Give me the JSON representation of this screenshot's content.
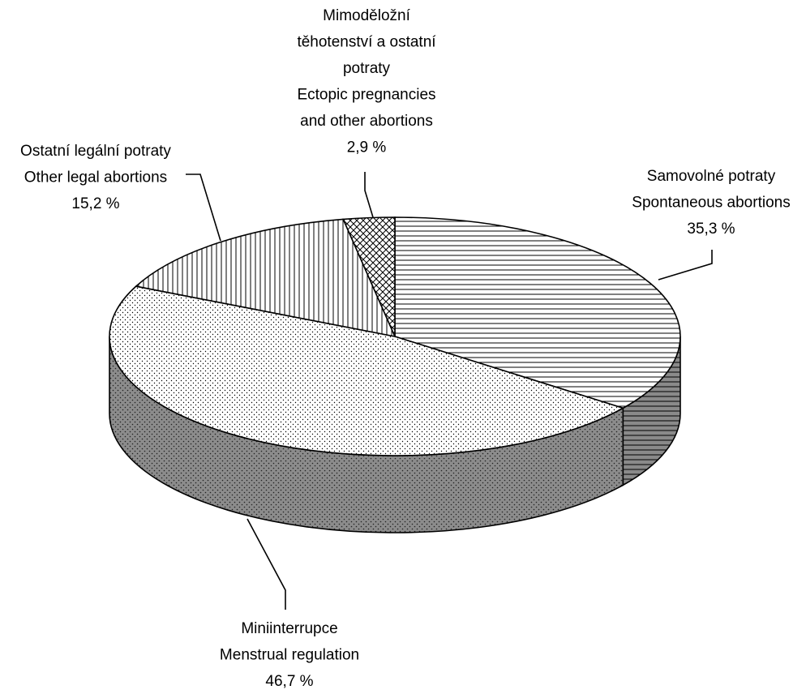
{
  "chart_data": {
    "type": "pie3d",
    "categories": [
      [
        "Samovolné potraty",
        "Spontaneous abortions"
      ],
      [
        "Miniinterrupce",
        "Menstrual regulation"
      ],
      [
        "Ostatní legální potraty",
        "Other legal abortions"
      ],
      [
        "Mimoděložní",
        "těhotenství a ostatní",
        "potraty",
        "Ectopic pregnancies",
        "and other abortions"
      ]
    ],
    "values": [
      35.3,
      46.7,
      15.2,
      2.9
    ],
    "value_labels": [
      "35,3 %",
      "46,7 %",
      "15,2 %",
      "2,9 %"
    ]
  }
}
